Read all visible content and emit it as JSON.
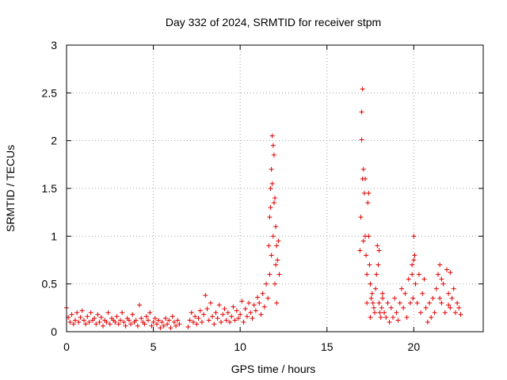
{
  "chart_data": {
    "type": "scatter",
    "title": "Day 332 of 2024, SRMTID for receiver stpm",
    "xlabel": "GPS time / hours",
    "ylabel": "SRMTID / TECUs",
    "xlim": [
      0,
      24
    ],
    "ylim": [
      0,
      3
    ],
    "xticks": [
      0,
      5,
      10,
      15,
      20
    ],
    "yticks": [
      0,
      0.5,
      1,
      1.5,
      2,
      2.5,
      3
    ],
    "xtick_labels": [
      "0",
      "5",
      "10",
      "15",
      "20"
    ],
    "ytick_labels": [
      "0",
      "0.5",
      "1",
      "1.5",
      "2",
      "2.5",
      "3"
    ],
    "grid": true,
    "marker": "+",
    "color": "#e00000",
    "series": [
      {
        "name": "stpm",
        "x": [
          0.0,
          0.1,
          0.2,
          0.3,
          0.4,
          0.5,
          0.6,
          0.7,
          0.8,
          0.9,
          1.0,
          1.1,
          1.2,
          1.3,
          1.4,
          1.5,
          1.6,
          1.7,
          1.8,
          1.9,
          2.0,
          2.1,
          2.2,
          2.3,
          2.4,
          2.5,
          2.6,
          2.7,
          2.8,
          2.9,
          3.0,
          3.1,
          3.2,
          3.3,
          3.4,
          3.5,
          3.6,
          3.7,
          3.8,
          3.9,
          4.0,
          4.1,
          4.2,
          4.3,
          4.4,
          4.5,
          4.6,
          4.7,
          4.8,
          4.9,
          5.0,
          5.1,
          5.2,
          5.3,
          5.4,
          5.5,
          5.6,
          5.7,
          5.8,
          5.9,
          6.0,
          6.1,
          6.2,
          6.3,
          6.4,
          6.5,
          7.0,
          7.1,
          7.2,
          7.3,
          7.4,
          7.5,
          7.6,
          7.7,
          7.8,
          7.9,
          8.0,
          8.1,
          8.2,
          8.3,
          8.4,
          8.5,
          8.6,
          8.7,
          8.8,
          8.9,
          9.0,
          9.1,
          9.2,
          9.3,
          9.4,
          9.5,
          9.6,
          9.7,
          9.8,
          9.9,
          10.0,
          10.1,
          10.2,
          10.3,
          10.4,
          10.5,
          10.6,
          10.7,
          10.8,
          10.9,
          11.0,
          11.1,
          11.2,
          11.3,
          11.4,
          11.5,
          11.6,
          11.65,
          11.7,
          11.75,
          11.8,
          11.85,
          11.9,
          11.95,
          12.0,
          12.05,
          12.1,
          12.15,
          12.2,
          12.25,
          11.7,
          11.8,
          11.9,
          12.0,
          12.1,
          11.75,
          11.85,
          11.95,
          12.05,
          16.9,
          16.95,
          17.0,
          17.05,
          17.1,
          17.15,
          17.2,
          17.25,
          17.3,
          17.35,
          17.4,
          17.45,
          17.5,
          17.55,
          17.6,
          17.65,
          17.7,
          17.75,
          17.8,
          17.85,
          17.9,
          17.95,
          18.0,
          18.05,
          18.1,
          18.15,
          18.2,
          18.3,
          18.4,
          18.5,
          18.6,
          18.7,
          18.8,
          18.9,
          19.0,
          19.1,
          19.2,
          19.3,
          19.4,
          19.5,
          19.6,
          19.7,
          19.8,
          19.9,
          19.95,
          20.0,
          20.05,
          20.1,
          20.2,
          20.3,
          20.4,
          20.5,
          20.6,
          20.7,
          20.8,
          20.9,
          21.0,
          21.1,
          21.2,
          21.3,
          21.4,
          21.5,
          21.6,
          21.7,
          21.8,
          21.9,
          22.0,
          22.1,
          22.2,
          22.3,
          22.4,
          22.5,
          22.6,
          22.7,
          17.0,
          17.05,
          17.1,
          17.2,
          17.3,
          17.4,
          17.5,
          18.0,
          18.2,
          19.9,
          20.0,
          21.5,
          21.6,
          22.0,
          22.1
        ],
        "y": [
          0.25,
          0.15,
          0.1,
          0.18,
          0.08,
          0.12,
          0.2,
          0.1,
          0.15,
          0.22,
          0.12,
          0.08,
          0.16,
          0.1,
          0.2,
          0.12,
          0.14,
          0.08,
          0.18,
          0.1,
          0.15,
          0.06,
          0.12,
          0.1,
          0.2,
          0.08,
          0.14,
          0.12,
          0.1,
          0.16,
          0.08,
          0.12,
          0.2,
          0.1,
          0.06,
          0.14,
          0.12,
          0.08,
          0.18,
          0.1,
          0.12,
          0.06,
          0.28,
          0.14,
          0.1,
          0.08,
          0.16,
          0.12,
          0.2,
          0.06,
          0.1,
          0.14,
          0.08,
          0.12,
          0.04,
          0.1,
          0.06,
          0.14,
          0.08,
          0.12,
          0.04,
          0.16,
          0.1,
          0.06,
          0.12,
          0.08,
          0.05,
          0.12,
          0.2,
          0.1,
          0.16,
          0.08,
          0.14,
          0.22,
          0.1,
          0.18,
          0.38,
          0.24,
          0.12,
          0.3,
          0.16,
          0.08,
          0.2,
          0.14,
          0.28,
          0.1,
          0.18,
          0.24,
          0.12,
          0.2,
          0.1,
          0.16,
          0.26,
          0.12,
          0.22,
          0.14,
          0.18,
          0.32,
          0.1,
          0.24,
          0.16,
          0.3,
          0.2,
          0.14,
          0.28,
          0.22,
          0.36,
          0.3,
          0.18,
          0.4,
          0.26,
          0.5,
          0.35,
          0.9,
          1.2,
          1.5,
          1.7,
          2.05,
          1.95,
          1.85,
          1.4,
          1.1,
          0.9,
          0.75,
          0.95,
          0.6,
          0.6,
          0.8,
          1.0,
          0.5,
          0.3,
          1.3,
          1.55,
          1.35,
          0.7,
          0.85,
          1.2,
          2.3,
          1.6,
          1.7,
          1.45,
          1.0,
          0.8,
          0.6,
          1.35,
          1.0,
          0.7,
          0.5,
          0.35,
          0.4,
          0.3,
          0.25,
          0.2,
          0.45,
          0.6,
          0.9,
          0.7,
          0.3,
          0.2,
          0.15,
          0.25,
          0.35,
          0.2,
          0.15,
          0.3,
          0.1,
          0.25,
          0.15,
          0.35,
          0.2,
          0.12,
          0.3,
          0.45,
          0.25,
          0.4,
          0.15,
          0.55,
          0.3,
          0.7,
          0.35,
          1.0,
          0.8,
          0.5,
          0.3,
          0.6,
          0.2,
          0.4,
          0.55,
          0.25,
          0.1,
          0.3,
          0.15,
          0.35,
          0.2,
          0.45,
          0.6,
          0.7,
          0.3,
          0.5,
          0.2,
          0.65,
          0.4,
          0.25,
          0.35,
          0.45,
          0.2,
          0.3,
          0.25,
          0.18,
          2.01,
          2.54,
          0.95,
          1.6,
          0.3,
          1.45,
          0.15,
          0.85,
          0.4,
          0.6,
          0.75,
          0.35,
          0.55,
          0.28,
          0.62
        ]
      }
    ]
  }
}
